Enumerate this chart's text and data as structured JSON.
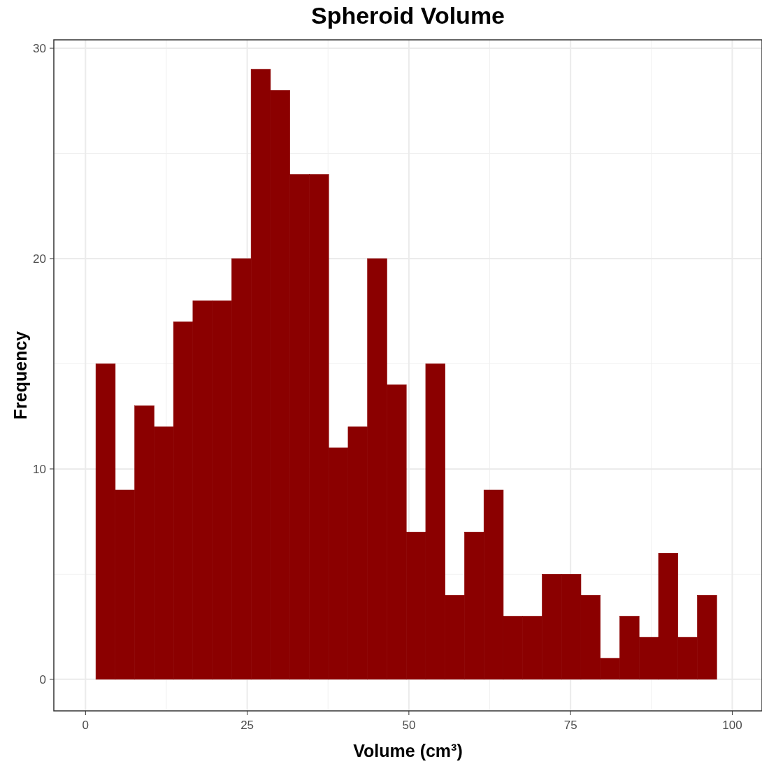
{
  "chart_data": {
    "type": "histogram",
    "title": "Spheroid Volume",
    "xlabel": "Volume (cm³)",
    "ylabel": "Frequency",
    "bins": [
      1.6,
      4.6,
      7.6,
      10.6,
      13.6,
      16.6,
      19.6,
      22.6,
      25.6,
      28.6,
      31.6,
      34.6,
      37.6,
      40.6,
      43.6,
      46.6,
      49.6,
      52.6,
      55.6,
      58.6,
      61.6,
      64.6,
      67.6,
      70.6,
      73.6,
      76.6,
      79.6,
      82.6,
      85.6,
      88.6,
      91.6,
      94.6,
      97.6
    ],
    "values": [
      15,
      9,
      13,
      12,
      17,
      18,
      18,
      20,
      29,
      28,
      24,
      24,
      11,
      12,
      20,
      14,
      7,
      15,
      4,
      7,
      9,
      3,
      3,
      5,
      5,
      4,
      1,
      3,
      2,
      6,
      2,
      4
    ],
    "color": "#8b0000",
    "xlim": [
      -4.9,
      104.6
    ],
    "ylim": [
      -1.5,
      30.4
    ],
    "xticks": [
      0,
      25,
      50,
      75,
      100
    ],
    "yticks": [
      0,
      10,
      20,
      30
    ],
    "grid": true
  }
}
